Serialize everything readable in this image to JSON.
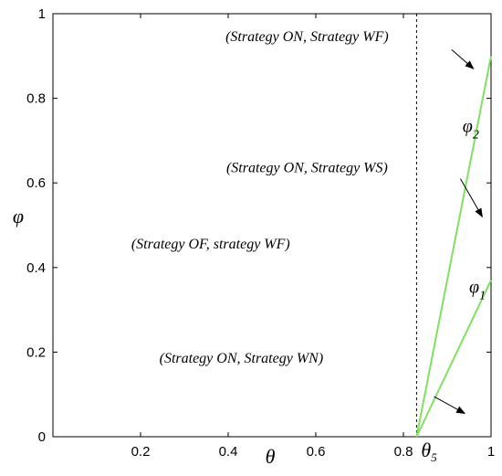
{
  "chart_data": {
    "type": "line",
    "xlabel": "θ",
    "ylabel": "φ",
    "xlim": [
      0,
      1
    ],
    "ylim": [
      0,
      1
    ],
    "x_ticks": [
      0.2,
      0.4,
      0.6,
      0.8,
      1
    ],
    "x_tick_labels": [
      "0.2",
      "0.4",
      "0.6",
      "0.8",
      "1"
    ],
    "y_ticks": [
      0,
      0.2,
      0.4,
      0.6,
      0.8,
      1
    ],
    "y_tick_labels": [
      "0",
      "0.2",
      "0.4",
      "0.6",
      "0.8",
      "1"
    ],
    "grid": false,
    "line_color": "#80e060",
    "series": [
      {
        "name": "φ2",
        "x": [
          0.83,
          1.0
        ],
        "y": [
          0.0,
          0.9
        ]
      },
      {
        "name": "φ1",
        "x": [
          0.83,
          1.0
        ],
        "y": [
          0.0,
          0.37
        ]
      }
    ],
    "vline": {
      "x": 0.83,
      "label": "θ5",
      "style": "dashed"
    },
    "curve_labels": {
      "phi2": {
        "base": "φ",
        "sub": "2",
        "x": 0.935,
        "y": 0.72
      },
      "phi1": {
        "base": "φ",
        "sub": "1",
        "x": 0.95,
        "y": 0.34
      }
    },
    "annotations": [
      {
        "text": "(Strategy ON, Strategy WF)",
        "x": 0.58,
        "y": 0.935,
        "arrow_from": [
          0.91,
          0.915
        ],
        "arrow_to": [
          0.96,
          0.87
        ]
      },
      {
        "text": "(Strategy ON, Strategy WS)",
        "x": 0.58,
        "y": 0.625,
        "arrow_from": [
          0.93,
          0.61
        ],
        "arrow_to": [
          0.98,
          0.52
        ]
      },
      {
        "text": "(Strategy OF, strategy WF)",
        "x": 0.36,
        "y": 0.445
      },
      {
        "text": "(Strategy ON, Strategy WN)",
        "x": 0.43,
        "y": 0.175,
        "arrow_from": [
          0.87,
          0.095
        ],
        "arrow_to": [
          0.94,
          0.055
        ]
      }
    ]
  }
}
